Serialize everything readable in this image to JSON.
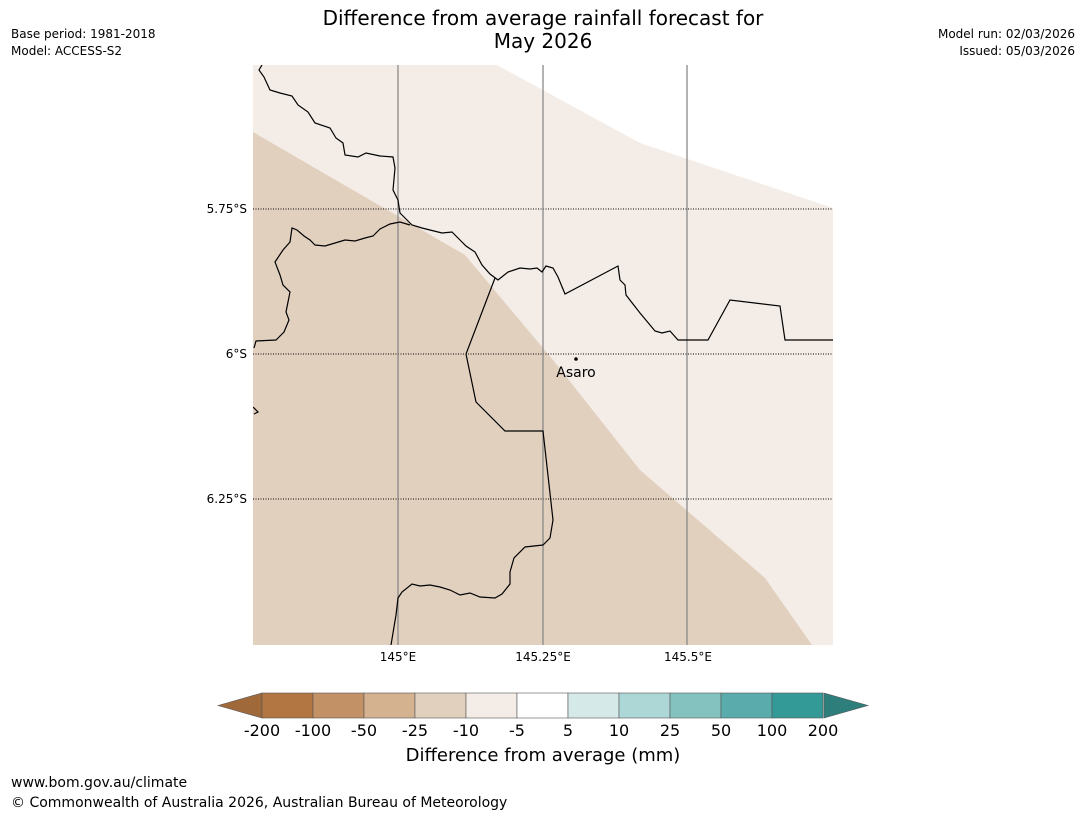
{
  "title": {
    "line1": "Difference from average rainfall forecast for",
    "line2": "May 2026"
  },
  "meta": {
    "base_period": "Base period: 1981-2018",
    "model": "Model: ACCESS-S2",
    "model_run": "Model run: 02/03/2026",
    "issued": "Issued: 05/03/2026"
  },
  "map": {
    "latitude_labels": [
      "5.75°S",
      "6°S",
      "6.25°S"
    ],
    "longitude_labels": [
      "145°E",
      "145.25°E",
      "145.5°E"
    ],
    "place": "Asaro",
    "regions": [
      {
        "category": "-25 to -10",
        "color": "#e2d0bf"
      },
      {
        "category": "-10 to -5",
        "color": "#f4ede7"
      }
    ]
  },
  "colorbar": {
    "title": "Difference from average (mm)",
    "ticks": [
      "-200",
      "-100",
      "-50",
      "-25",
      "-10",
      "-5",
      "5",
      "10",
      "25",
      "50",
      "100",
      "200"
    ],
    "colors": [
      "#a0693a",
      "#b17641",
      "#c29166",
      "#d4b18f",
      "#e2d0bf",
      "#f4ede7",
      "#ffffff",
      "#d6e9e9",
      "#add6d6",
      "#84c2bf",
      "#5aacac",
      "#349a98",
      "#2e7e7b"
    ]
  },
  "footer": {
    "url": "www.bom.gov.au/climate",
    "copyright": "© Commonwealth of Australia 2026, Australian Bureau of Meteorology"
  }
}
